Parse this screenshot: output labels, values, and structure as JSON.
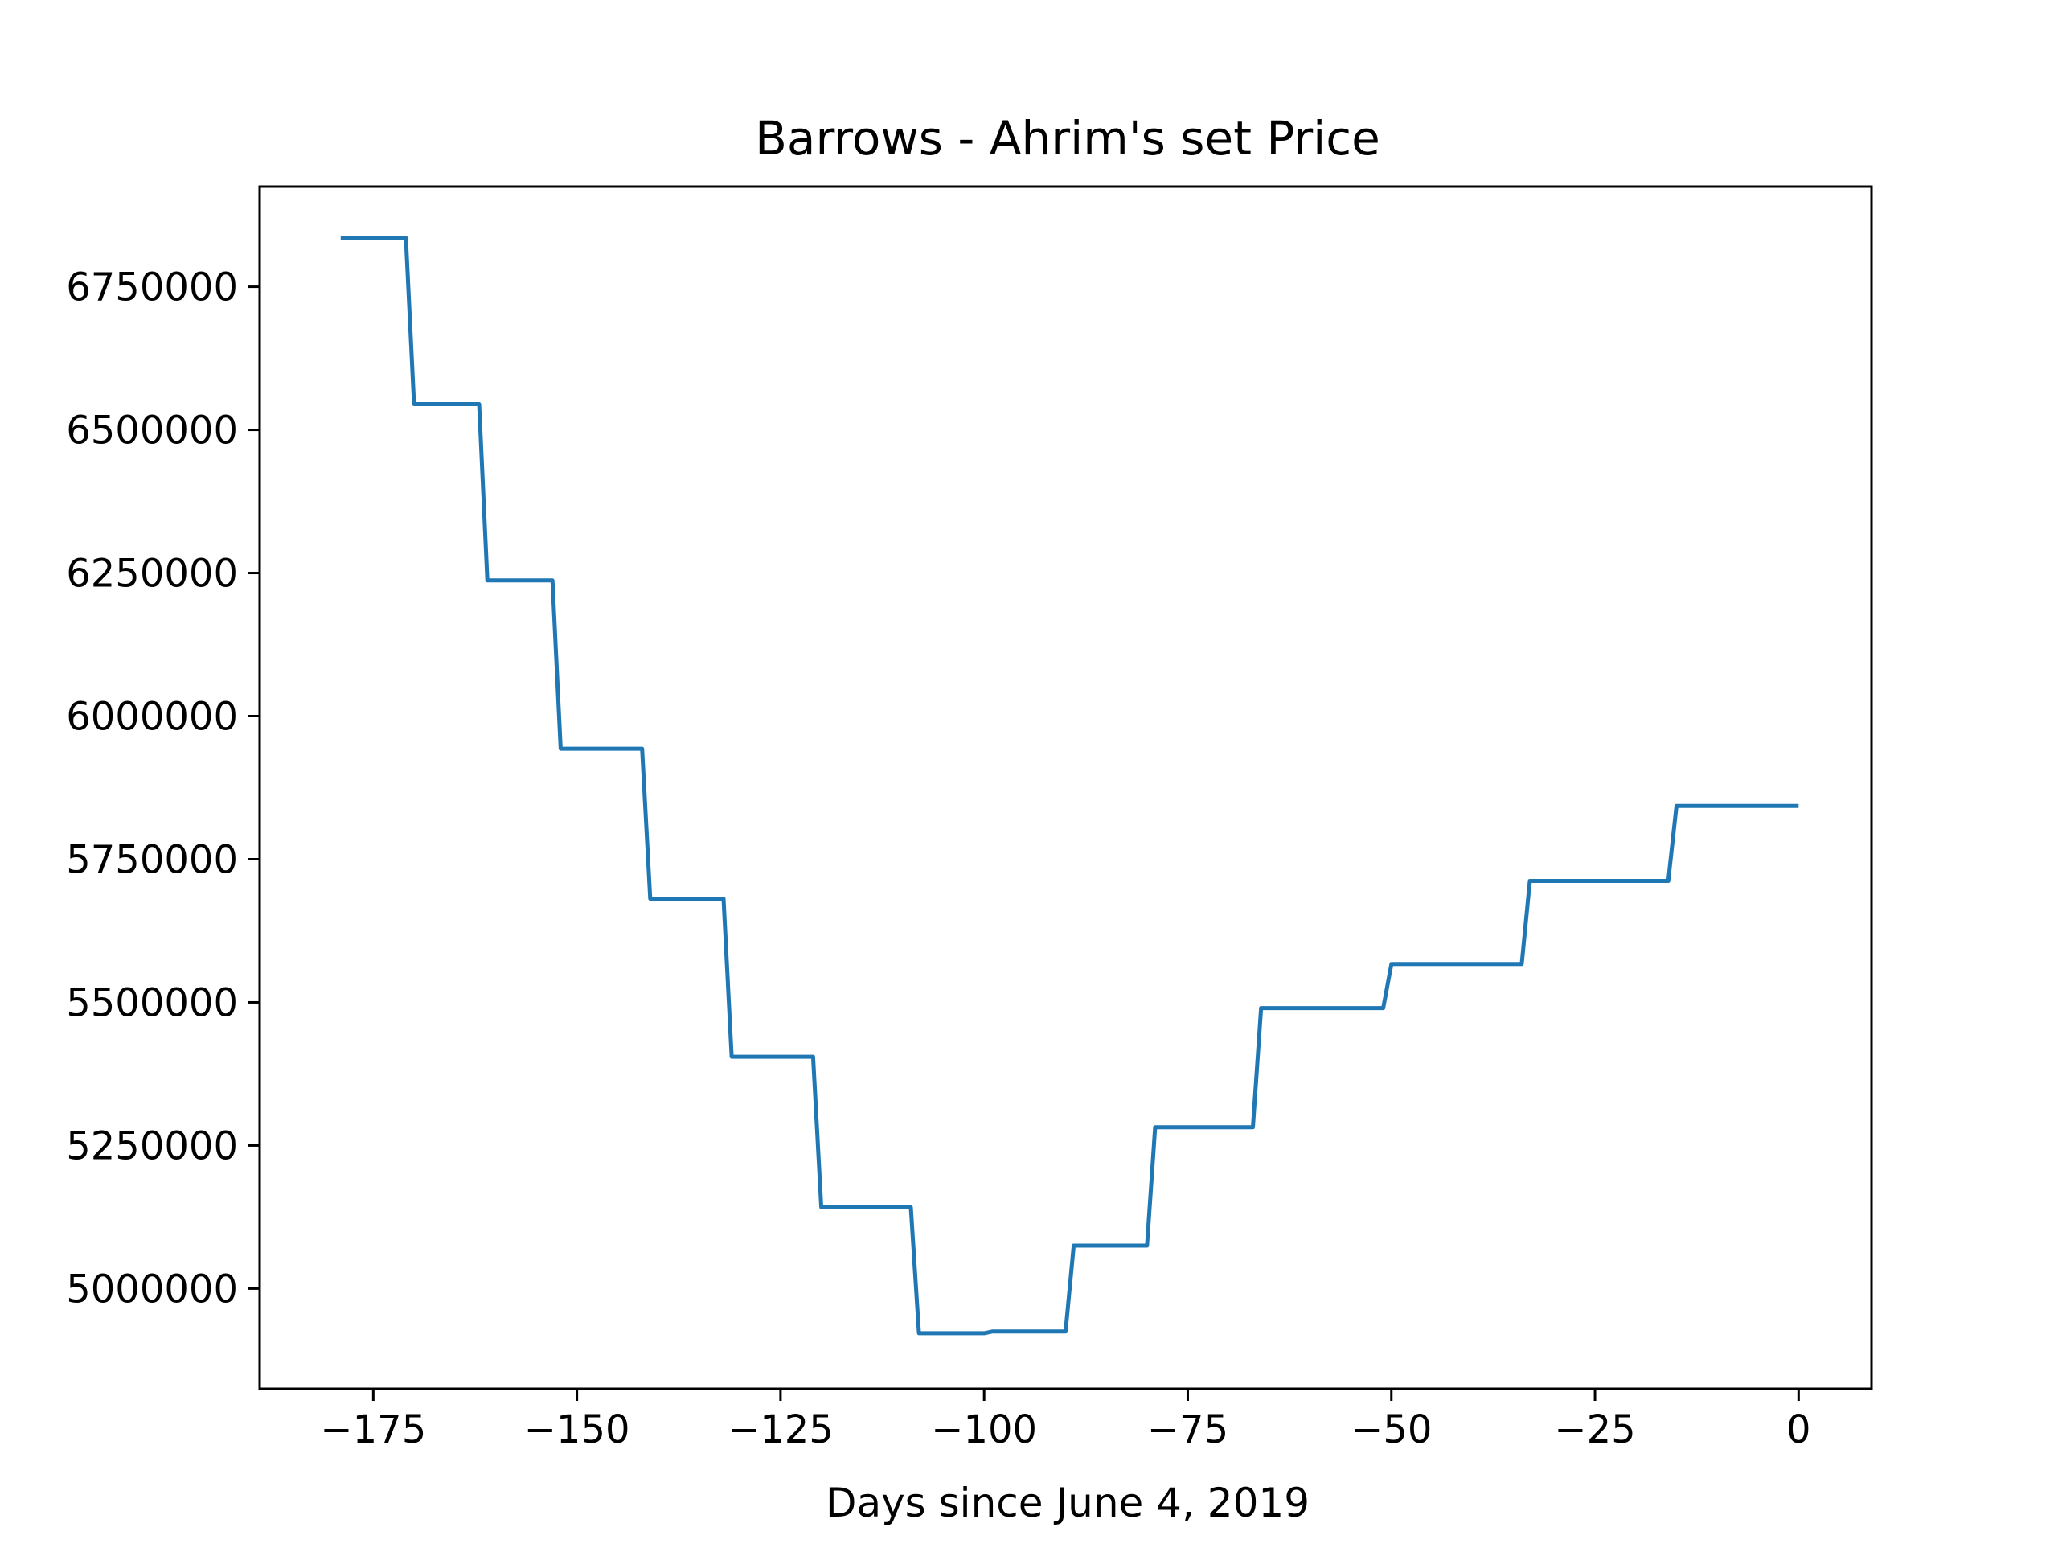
{
  "chart_data": {
    "type": "line",
    "title": "Barrows - Ahrim's set Price",
    "xlabel": "Days since June 4, 2019",
    "ylabel": "",
    "xlim": [
      -188.95,
      8.95
    ],
    "ylim": [
      4825000,
      6925000
    ],
    "x_ticks": [
      -175,
      -150,
      -125,
      -100,
      -75,
      -50,
      -25,
      0
    ],
    "x_tick_labels": [
      "−175",
      "−150",
      "−125",
      "−100",
      "−75",
      "−50",
      "−25",
      "0"
    ],
    "y_ticks": [
      5000000,
      5250000,
      5500000,
      5750000,
      6000000,
      6250000,
      6500000,
      6750000
    ],
    "y_tick_labels": [
      "5000000",
      "5250000",
      "5500000",
      "5750000",
      "6000000",
      "6250000",
      "6500000",
      "6750000"
    ],
    "grid": false,
    "legend": "none",
    "series": [
      {
        "color": "#1f77b4",
        "points": [
          [
            -179,
            6835000
          ],
          [
            -171,
            6835000
          ],
          [
            -170,
            6545000
          ],
          [
            -162,
            6545000
          ],
          [
            -161,
            6237000
          ],
          [
            -153,
            6237000
          ],
          [
            -152,
            5943000
          ],
          [
            -142,
            5943000
          ],
          [
            -141,
            5681000
          ],
          [
            -132,
            5681000
          ],
          [
            -131,
            5405000
          ],
          [
            -121,
            5405000
          ],
          [
            -120,
            5142000
          ],
          [
            -109,
            5142000
          ],
          [
            -108,
            4922000
          ],
          [
            -100,
            4922000
          ],
          [
            -99,
            4925000
          ],
          [
            -90,
            4925000
          ],
          [
            -89,
            5075000
          ],
          [
            -80,
            5075000
          ],
          [
            -79,
            5282000
          ],
          [
            -67,
            5282000
          ],
          [
            -66,
            5490000
          ],
          [
            -51,
            5490000
          ],
          [
            -50,
            5567000
          ],
          [
            -34,
            5567000
          ],
          [
            -33,
            5712000
          ],
          [
            -16,
            5712000
          ],
          [
            -15,
            5843000
          ],
          [
            0,
            5843000
          ]
        ]
      }
    ]
  }
}
